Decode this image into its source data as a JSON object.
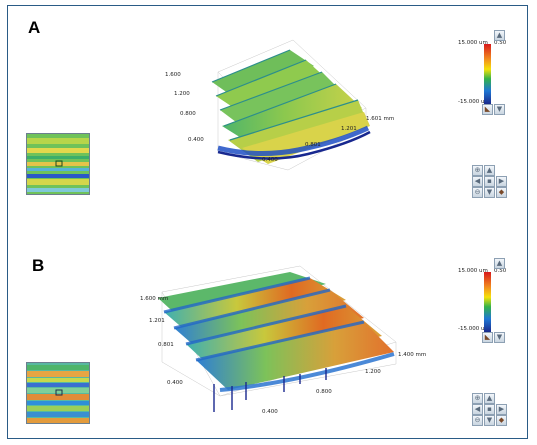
{
  "panels": [
    {
      "label": "A",
      "colorbar": {
        "top": "15.000 um",
        "top_right": "0.50",
        "bottom": "-15.000 um"
      },
      "axis_ticks": {
        "y_back": [
          "1.600",
          "1.200",
          "0.800",
          "0.400"
        ],
        "x_front": [
          "0.400",
          "0.801",
          "1.201",
          "1.601 mm"
        ]
      }
    },
    {
      "label": "B",
      "colorbar": {
        "top": "15.000 um",
        "top_right": "0.50",
        "bottom": "-15.000 um"
      },
      "axis_ticks": {
        "y_back": [
          "1.600 mm",
          "1.201",
          "0.801",
          "0.400"
        ],
        "x_front": [
          "0.400",
          "0.800",
          "1.200",
          "1.400 mm"
        ]
      }
    }
  ],
  "colors": {
    "frame": "#2a5b86",
    "hot": "#d7191c",
    "mid": "#f5e20a",
    "green": "#33b34a",
    "cool": "#1f77d4",
    "deep": "#1a2a8c"
  },
  "icons": [
    "zoom-in-icon",
    "arrow-up-icon",
    "arrow-left-icon",
    "home-icon",
    "arrow-right-icon",
    "zoom-out-icon",
    "arrow-down-icon",
    "reset-icon"
  ]
}
